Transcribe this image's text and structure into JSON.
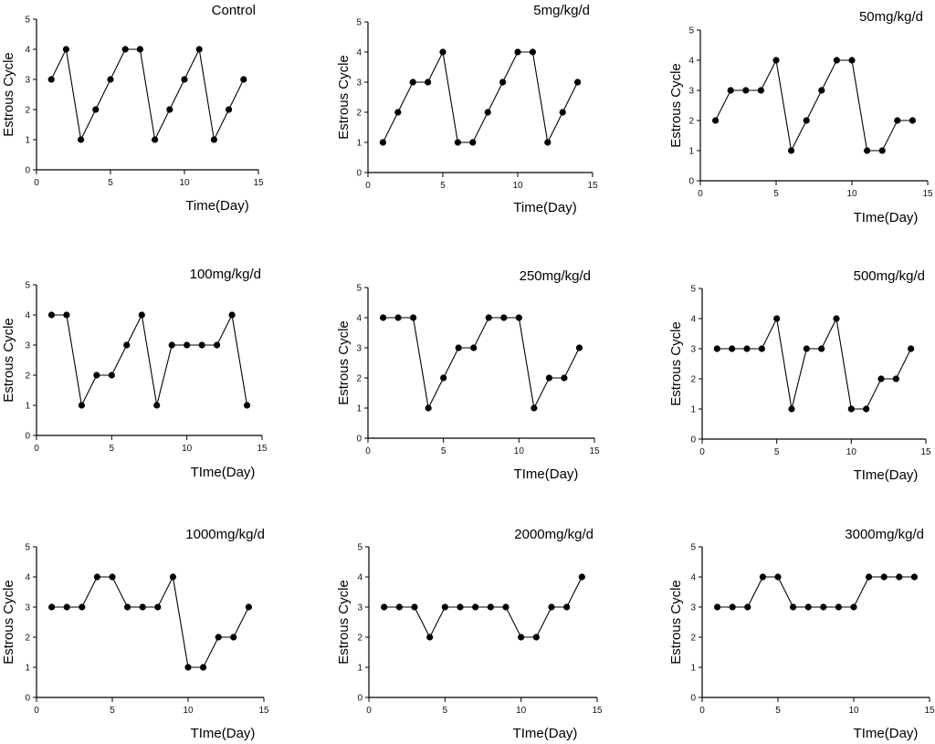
{
  "figure": {
    "background": "#ffffff",
    "line_color": "#000000"
  },
  "chart_data": [
    {
      "type": "line",
      "title": "Control",
      "xlabel": "Time(Day)",
      "ylabel": "Estrous Cycle",
      "xlim": [
        0,
        15
      ],
      "ylim": [
        0,
        5
      ],
      "xticks": [
        0,
        5,
        10,
        15
      ],
      "yticks": [
        0,
        1,
        2,
        3,
        4,
        5
      ],
      "x": [
        1,
        2,
        3,
        4,
        5,
        6,
        7,
        8,
        9,
        10,
        11,
        12,
        13,
        14
      ],
      "values": [
        3,
        4,
        1,
        2,
        3,
        4,
        4,
        1,
        2,
        3,
        4,
        1,
        2,
        3
      ]
    },
    {
      "type": "line",
      "title": "5mg/kg/d",
      "xlabel": "Time(Day)",
      "ylabel": "Estrous Cycle",
      "xlim": [
        0,
        15
      ],
      "ylim": [
        0,
        5
      ],
      "xticks": [
        0,
        5,
        10,
        15
      ],
      "yticks": [
        0,
        1,
        2,
        3,
        4,
        5
      ],
      "x": [
        1,
        2,
        3,
        4,
        5,
        6,
        7,
        8,
        9,
        10,
        11,
        12,
        13,
        14
      ],
      "values": [
        1,
        2,
        3,
        3,
        4,
        1,
        1,
        2,
        3,
        4,
        4,
        1,
        2,
        3
      ]
    },
    {
      "type": "line",
      "title": "50mg/kg/d",
      "xlabel": "TIme(Day)",
      "ylabel": "Estrous Cycle",
      "xlim": [
        0,
        15
      ],
      "ylim": [
        0,
        5
      ],
      "xticks": [
        0,
        5,
        10,
        15
      ],
      "yticks": [
        0,
        1,
        2,
        3,
        4,
        5
      ],
      "x": [
        1,
        2,
        3,
        4,
        5,
        6,
        7,
        8,
        9,
        10,
        11,
        12,
        13,
        14
      ],
      "values": [
        2,
        3,
        3,
        3,
        4,
        1,
        2,
        3,
        4,
        4,
        1,
        1,
        2,
        2
      ]
    },
    {
      "type": "line",
      "title": "100mg/kg/d",
      "xlabel": "TIme(Day)",
      "ylabel": "Estrous Cycle",
      "xlim": [
        0,
        15
      ],
      "ylim": [
        0,
        5
      ],
      "xticks": [
        0,
        5,
        10,
        15
      ],
      "yticks": [
        0,
        1,
        2,
        3,
        4,
        5
      ],
      "x": [
        1,
        2,
        3,
        4,
        5,
        6,
        7,
        8,
        9,
        10,
        11,
        12,
        13,
        14
      ],
      "values": [
        4,
        4,
        1,
        2,
        2,
        3,
        4,
        1,
        3,
        3,
        3,
        3,
        4,
        1
      ]
    },
    {
      "type": "line",
      "title": "250mg/kg/d",
      "xlabel": "TIme(Day)",
      "ylabel": "Estrous Cycle",
      "xlim": [
        0,
        15
      ],
      "ylim": [
        0,
        5
      ],
      "xticks": [
        0,
        5,
        10,
        15
      ],
      "yticks": [
        0,
        1,
        2,
        3,
        4,
        5
      ],
      "x": [
        1,
        2,
        3,
        4,
        5,
        6,
        7,
        8,
        9,
        10,
        11,
        12,
        13,
        14
      ],
      "values": [
        4,
        4,
        4,
        1,
        2,
        3,
        3,
        4,
        4,
        4,
        1,
        2,
        2,
        3
      ]
    },
    {
      "type": "line",
      "title": "500mg/kg/d",
      "xlabel": "TIme(Day)",
      "ylabel": "Estrous Cycle",
      "xlim": [
        0,
        15
      ],
      "ylim": [
        0,
        5
      ],
      "xticks": [
        0,
        5,
        10,
        15
      ],
      "yticks": [
        0,
        1,
        2,
        3,
        4,
        5
      ],
      "x": [
        1,
        2,
        3,
        4,
        5,
        6,
        7,
        8,
        9,
        10,
        11,
        12,
        13,
        14
      ],
      "values": [
        3,
        3,
        3,
        3,
        4,
        1,
        3,
        3,
        4,
        1,
        1,
        2,
        2,
        3
      ]
    },
    {
      "type": "line",
      "title": "1000mg/kg/d",
      "xlabel": "TIme(Day)",
      "ylabel": "Estrous Cycle",
      "xlim": [
        0,
        15
      ],
      "ylim": [
        0,
        5
      ],
      "xticks": [
        0,
        5,
        10,
        15
      ],
      "yticks": [
        0,
        1,
        2,
        3,
        4,
        5
      ],
      "x": [
        1,
        2,
        3,
        4,
        5,
        6,
        7,
        8,
        9,
        10,
        11,
        12,
        13,
        14
      ],
      "values": [
        3,
        3,
        3,
        4,
        4,
        3,
        3,
        3,
        4,
        1,
        1,
        2,
        2,
        3
      ]
    },
    {
      "type": "line",
      "title": "2000mg/kg/d",
      "xlabel": "TIme(Day)",
      "ylabel": "Estrous Cycle",
      "xlim": [
        0,
        15
      ],
      "ylim": [
        0,
        5
      ],
      "xticks": [
        0,
        5,
        10,
        15
      ],
      "yticks": [
        0,
        1,
        2,
        3,
        4,
        5
      ],
      "x": [
        1,
        2,
        3,
        4,
        5,
        6,
        7,
        8,
        9,
        10,
        11,
        12,
        13,
        14
      ],
      "values": [
        3,
        3,
        3,
        2,
        3,
        3,
        3,
        3,
        3,
        2,
        2,
        3,
        3,
        4
      ]
    },
    {
      "type": "line",
      "title": "3000mg/kg/d",
      "xlabel": "TIme(Day)",
      "ylabel": "Estrous Cycle",
      "xlim": [
        0,
        15
      ],
      "ylim": [
        0,
        5
      ],
      "xticks": [
        0,
        5,
        10,
        15
      ],
      "yticks": [
        0,
        1,
        2,
        3,
        4,
        5
      ],
      "x": [
        1,
        2,
        3,
        4,
        5,
        6,
        7,
        8,
        9,
        10,
        11,
        12,
        13,
        14
      ],
      "values": [
        3,
        3,
        3,
        4,
        4,
        3,
        3,
        3,
        3,
        3,
        4,
        4,
        4,
        4
      ]
    }
  ]
}
